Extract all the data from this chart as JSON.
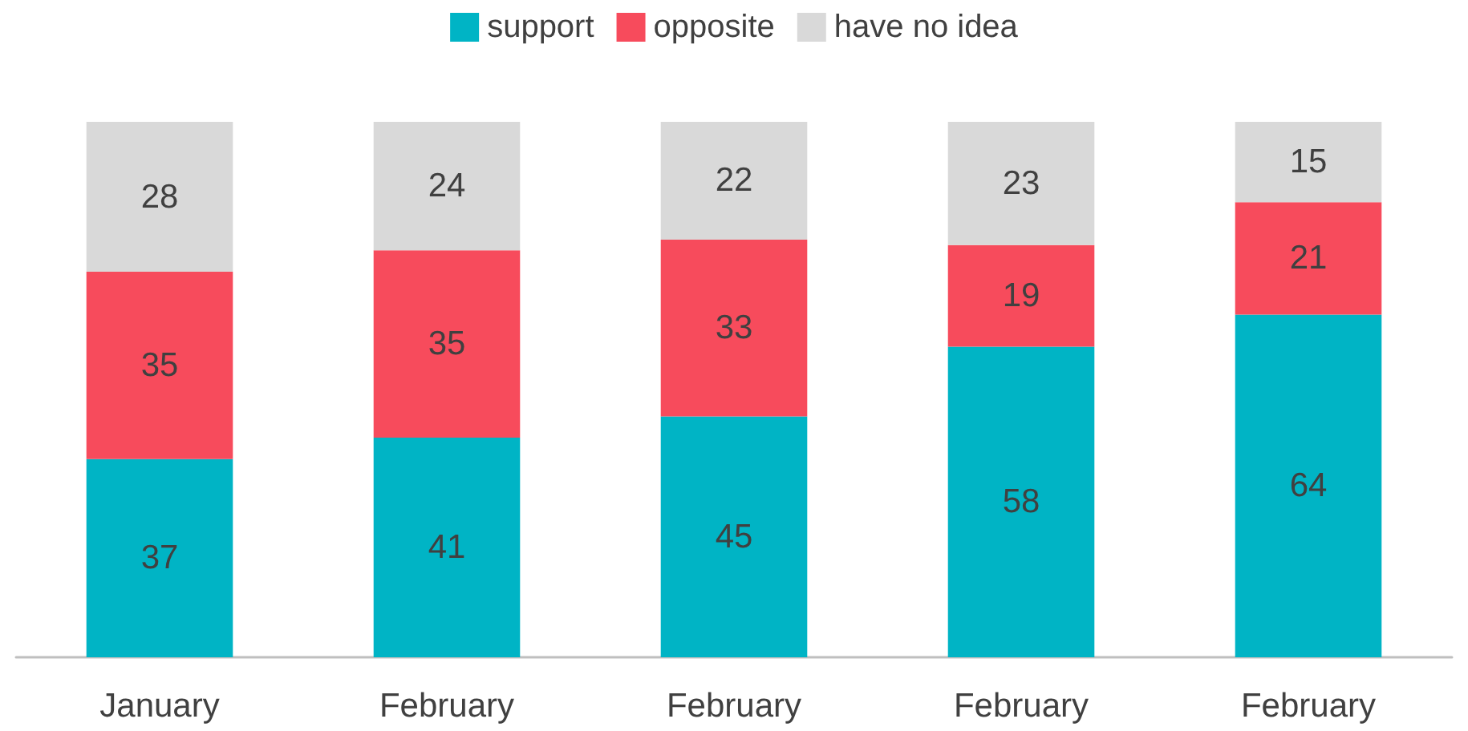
{
  "chart_data": {
    "type": "bar",
    "stacked": true,
    "data_labels": true,
    "legend": "top",
    "grid": false,
    "tick_labels": "x",
    "categories": [
      "January",
      "February",
      "February",
      "February",
      "February"
    ],
    "series": [
      {
        "name": "support",
        "color": "#00b4c5",
        "values": [
          37,
          41,
          45,
          58,
          64
        ]
      },
      {
        "name": "opposite",
        "color": "#f74b5c",
        "values": [
          35,
          35,
          33,
          19,
          21
        ]
      },
      {
        "name": "have no idea",
        "color": "#d9d9d9",
        "values": [
          28,
          24,
          22,
          23,
          15
        ]
      }
    ]
  }
}
